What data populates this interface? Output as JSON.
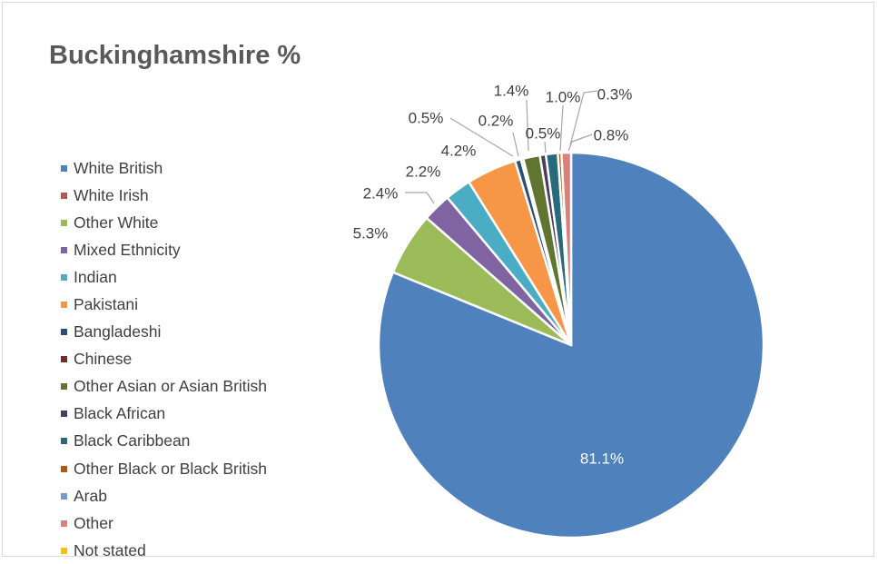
{
  "chart_data": {
    "type": "pie",
    "title": "Buckinghamshire %",
    "legend_position": "left",
    "start_angle_deg": 0,
    "direction": "clockwise",
    "slices": [
      {
        "name": "White British",
        "value": 81.1,
        "label": "81.1%",
        "color": "#4F81BD"
      },
      {
        "name": "White Irish",
        "value": 0.0,
        "label": "",
        "color": "#C0504D"
      },
      {
        "name": "Other White",
        "value": 5.3,
        "label": "5.3%",
        "color": "#9BBB59"
      },
      {
        "name": "Mixed Ethnicity",
        "value": 2.4,
        "label": "2.4%",
        "color": "#8064A2"
      },
      {
        "name": "Indian",
        "value": 2.2,
        "label": "2.2%",
        "color": "#4BACC6"
      },
      {
        "name": "Pakistani",
        "value": 4.2,
        "label": "4.2%",
        "color": "#F79646"
      },
      {
        "name": "Bangladeshi",
        "value": 0.5,
        "label": "0.5%",
        "color": "#2C4D75"
      },
      {
        "name": "Chinese",
        "value": 0.2,
        "label": "0.2%",
        "color": "#772C2A"
      },
      {
        "name": "Other Asian or Asian British",
        "value": 1.4,
        "label": "1.4%",
        "color": "#5F7530"
      },
      {
        "name": "Black African",
        "value": 0.5,
        "label": "0.5%",
        "color": "#4D3B62"
      },
      {
        "name": "Black Caribbean",
        "value": 1.0,
        "label": "1.0%",
        "color": "#276A7C"
      },
      {
        "name": "Other Black or Black British",
        "value": 0.3,
        "label": "0.3%",
        "color": "#B65708"
      },
      {
        "name": "Arab",
        "value": 0.0,
        "label": "",
        "color": "#729ACA"
      },
      {
        "name": "Other",
        "value": 0.8,
        "label": "0.8%",
        "color": "#D9807E"
      },
      {
        "name": "Not stated",
        "value": 0.0,
        "label": "",
        "color": "#FFC000"
      }
    ]
  }
}
